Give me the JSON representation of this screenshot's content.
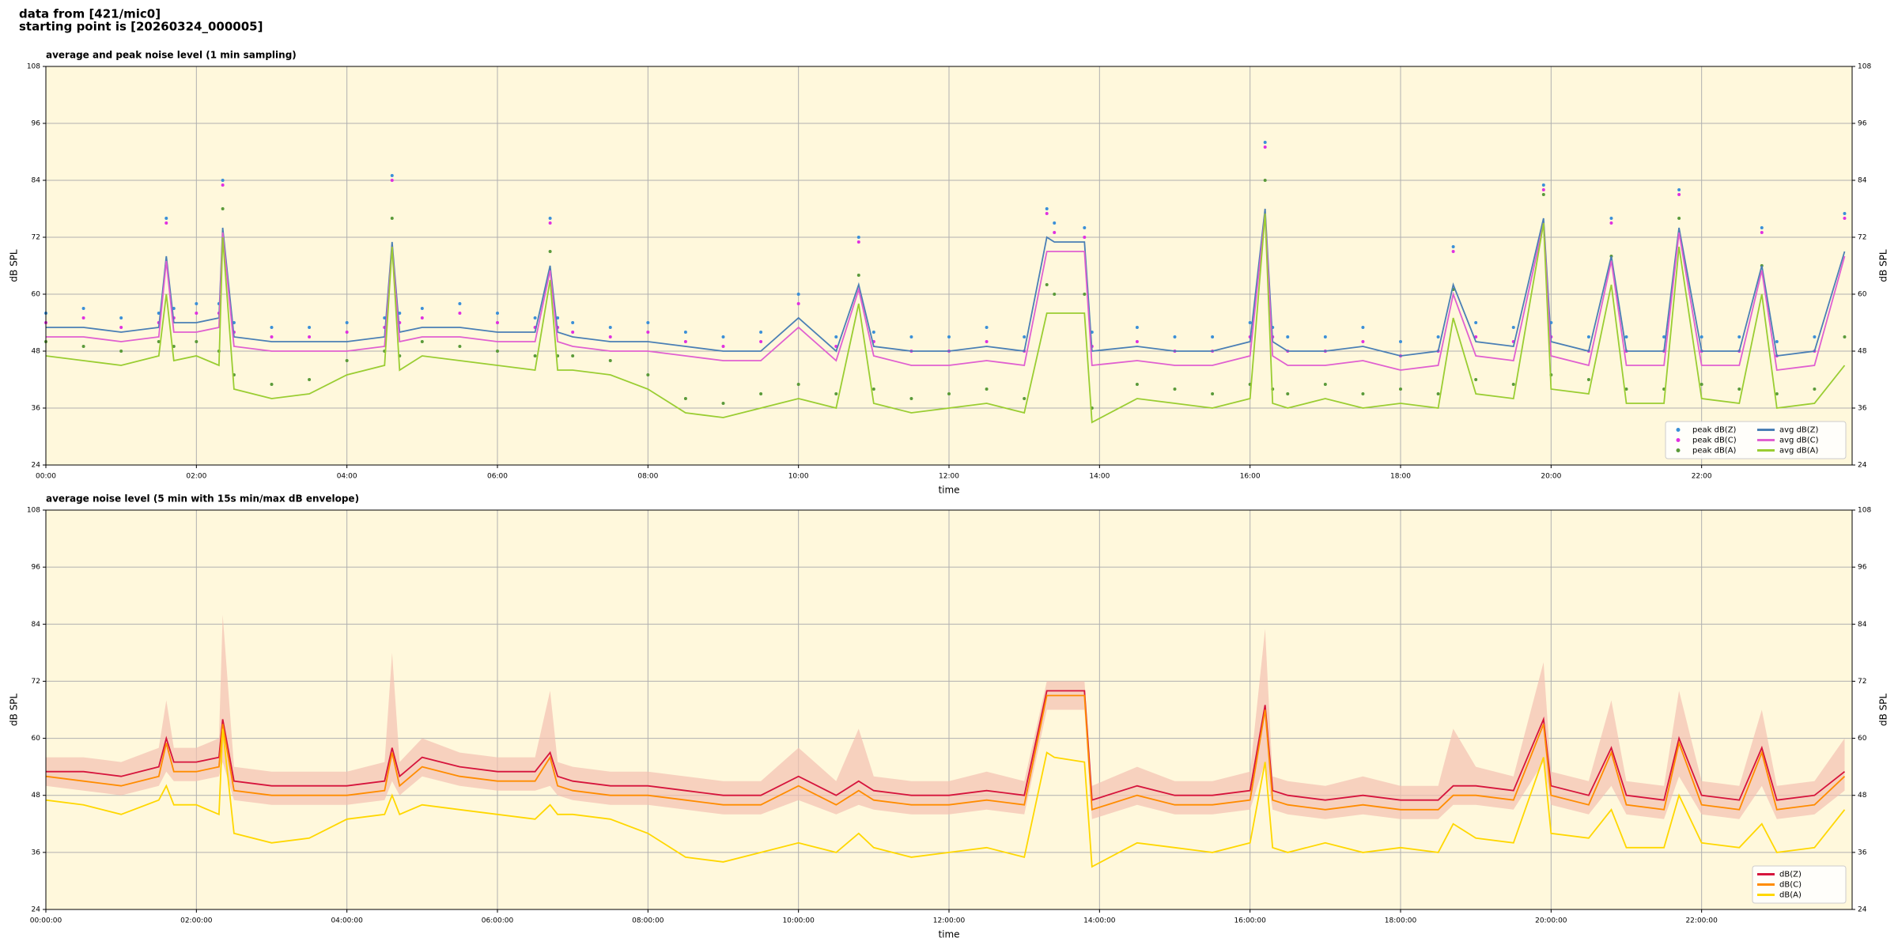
{
  "header": [
    "data from [421/mic0]",
    "starting point is [20260324_000005]"
  ],
  "chart_data": [
    {
      "type": "line",
      "title": "average and peak noise level (1 min sampling)",
      "ylabel": "dB SPL",
      "xlabel": "time",
      "xlim": [
        0,
        24
      ],
      "ylim": [
        24,
        108
      ],
      "yticks": [
        24,
        36,
        48,
        60,
        72,
        84,
        96,
        108
      ],
      "xticks": [
        {
          "value": 0,
          "label": "00:00"
        },
        {
          "value": 2,
          "label": "02:00"
        },
        {
          "value": 4,
          "label": "04:00"
        },
        {
          "value": 6,
          "label": "06:00"
        },
        {
          "value": 8,
          "label": "08:00"
        },
        {
          "value": 10,
          "label": "10:00"
        },
        {
          "value": 12,
          "label": "12:00"
        },
        {
          "value": 14,
          "label": "14:00"
        },
        {
          "value": 16,
          "label": "16:00"
        },
        {
          "value": 18,
          "label": "18:00"
        },
        {
          "value": 20,
          "label": "20:00"
        },
        {
          "value": 22,
          "label": "22:00"
        }
      ],
      "grid": true,
      "background": "#fff8dc",
      "legend": "lower right",
      "legend_columns": 2,
      "x": [
        0,
        0.5,
        1,
        1.5,
        1.6,
        1.7,
        2,
        2.3,
        2.35,
        2.5,
        3,
        3.5,
        4,
        4.5,
        4.6,
        4.7,
        5,
        5.5,
        6,
        6.5,
        6.7,
        6.8,
        7,
        7.5,
        8,
        8.5,
        9,
        9.5,
        10,
        10.5,
        10.8,
        11,
        11.5,
        12,
        12.5,
        13,
        13.3,
        13.4,
        13.8,
        13.9,
        14.5,
        15,
        15.5,
        16,
        16.2,
        16.3,
        16.5,
        17,
        17.5,
        18,
        18.5,
        18.7,
        19,
        19.5,
        19.9,
        20,
        20.5,
        20.8,
        21,
        21.5,
        21.7,
        22,
        22.5,
        22.8,
        23,
        23.5,
        23.9
      ],
      "series": [
        {
          "name": "peak dB(Z)",
          "color": "#3a8fd8",
          "style": "points",
          "values": [
            56,
            57,
            55,
            56,
            76,
            57,
            58,
            58,
            84,
            54,
            53,
            53,
            54,
            55,
            85,
            56,
            57,
            58,
            56,
            55,
            76,
            55,
            54,
            53,
            54,
            52,
            51,
            52,
            60,
            51,
            72,
            52,
            51,
            51,
            53,
            51,
            78,
            75,
            74,
            52,
            53,
            51,
            51,
            54,
            92,
            53,
            51,
            51,
            53,
            50,
            51,
            70,
            54,
            53,
            83,
            54,
            51,
            76,
            51,
            51,
            82,
            51,
            51,
            74,
            50,
            51,
            77
          ]
        },
        {
          "name": "peak dB(C)",
          "color": "#e030e0",
          "style": "points",
          "values": [
            54,
            55,
            53,
            54,
            75,
            55,
            56,
            56,
            83,
            52,
            51,
            51,
            52,
            53,
            84,
            54,
            55,
            56,
            54,
            53,
            75,
            53,
            52,
            51,
            52,
            50,
            49,
            50,
            58,
            49,
            71,
            50,
            48,
            48,
            50,
            48,
            77,
            73,
            72,
            49,
            50,
            48,
            48,
            51,
            91,
            51,
            48,
            48,
            50,
            47,
            48,
            69,
            51,
            50,
            82,
            51,
            48,
            75,
            48,
            48,
            81,
            48,
            48,
            73,
            47,
            48,
            76
          ]
        },
        {
          "name": "peak dB(A)",
          "color": "#5a9a3a",
          "style": "points",
          "values": [
            50,
            49,
            48,
            50,
            66,
            49,
            50,
            48,
            78,
            43,
            41,
            42,
            46,
            48,
            76,
            47,
            50,
            49,
            48,
            47,
            69,
            47,
            47,
            46,
            43,
            38,
            37,
            39,
            41,
            39,
            64,
            40,
            38,
            39,
            40,
            38,
            62,
            60,
            60,
            36,
            41,
            40,
            39,
            41,
            84,
            40,
            39,
            41,
            39,
            40,
            39,
            61,
            42,
            41,
            81,
            43,
            42,
            68,
            40,
            40,
            76,
            41,
            40,
            66,
            39,
            40,
            51
          ]
        },
        {
          "name": "avg dB(Z)",
          "color": "#4a7fb5",
          "style": "line",
          "values": [
            53,
            53,
            52,
            53,
            68,
            54,
            54,
            55,
            74,
            51,
            50,
            50,
            50,
            51,
            71,
            52,
            53,
            53,
            52,
            52,
            66,
            52,
            51,
            50,
            50,
            49,
            48,
            48,
            55,
            48,
            62,
            49,
            48,
            48,
            49,
            48,
            72,
            71,
            71,
            48,
            49,
            48,
            48,
            50,
            78,
            50,
            48,
            48,
            49,
            47,
            48,
            62,
            50,
            49,
            76,
            50,
            48,
            68,
            48,
            48,
            74,
            48,
            48,
            66,
            47,
            48,
            69
          ]
        },
        {
          "name": "avg dB(C)",
          "color": "#e060d0",
          "style": "line",
          "values": [
            51,
            51,
            50,
            51,
            67,
            52,
            52,
            53,
            73,
            49,
            48,
            48,
            48,
            49,
            70,
            50,
            51,
            51,
            50,
            50,
            65,
            50,
            49,
            48,
            48,
            47,
            46,
            46,
            53,
            46,
            61,
            47,
            45,
            45,
            46,
            45,
            69,
            69,
            69,
            45,
            46,
            45,
            45,
            47,
            77,
            47,
            45,
            45,
            46,
            44,
            45,
            60,
            47,
            46,
            75,
            47,
            45,
            67,
            45,
            45,
            73,
            45,
            45,
            65,
            44,
            45,
            68
          ]
        },
        {
          "name": "avg dB(A)",
          "color": "#9acd32",
          "style": "line",
          "values": [
            47,
            46,
            45,
            47,
            60,
            46,
            47,
            45,
            72,
            40,
            38,
            39,
            43,
            45,
            70,
            44,
            47,
            46,
            45,
            44,
            63,
            44,
            44,
            43,
            40,
            35,
            34,
            36,
            38,
            36,
            58,
            37,
            35,
            36,
            37,
            35,
            56,
            56,
            56,
            33,
            38,
            37,
            36,
            38,
            77,
            37,
            36,
            38,
            36,
            37,
            36,
            55,
            39,
            38,
            75,
            40,
            39,
            62,
            37,
            37,
            70,
            38,
            37,
            60,
            36,
            37,
            45
          ]
        }
      ]
    },
    {
      "type": "line",
      "title": "average noise level (5 min with 15s min/max dB envelope)",
      "ylabel": "dB SPL",
      "xlabel": "time",
      "xlim": [
        0,
        24
      ],
      "ylim": [
        24,
        108
      ],
      "yticks": [
        24,
        36,
        48,
        60,
        72,
        84,
        96,
        108
      ],
      "xticks": [
        {
          "value": 0,
          "label": "00:00:00"
        },
        {
          "value": 2,
          "label": "02:00:00"
        },
        {
          "value": 4,
          "label": "04:00:00"
        },
        {
          "value": 6,
          "label": "06:00:00"
        },
        {
          "value": 8,
          "label": "08:00:00"
        },
        {
          "value": 10,
          "label": "10:00:00"
        },
        {
          "value": 12,
          "label": "12:00:00"
        },
        {
          "value": 14,
          "label": "14:00:00"
        },
        {
          "value": 16,
          "label": "16:00:00"
        },
        {
          "value": 18,
          "label": "18:00:00"
        },
        {
          "value": 20,
          "label": "20:00:00"
        },
        {
          "value": 22,
          "label": "22:00:00"
        }
      ],
      "grid": true,
      "background": "#fff8dc",
      "legend": "lower right",
      "legend_columns": 1,
      "x": [
        0,
        0.5,
        1,
        1.5,
        1.6,
        1.7,
        2,
        2.3,
        2.35,
        2.5,
        3,
        3.5,
        4,
        4.5,
        4.6,
        4.7,
        5,
        5.5,
        6,
        6.5,
        6.7,
        6.8,
        7,
        7.5,
        8,
        8.5,
        9,
        9.5,
        10,
        10.5,
        10.8,
        11,
        11.5,
        12,
        12.5,
        13,
        13.3,
        13.4,
        13.8,
        13.9,
        14.5,
        15,
        15.5,
        16,
        16.2,
        16.3,
        16.5,
        17,
        17.5,
        18,
        18.5,
        18.7,
        19,
        19.5,
        19.9,
        20,
        20.5,
        20.8,
        21,
        21.5,
        21.7,
        22,
        22.5,
        22.8,
        23,
        23.5,
        23.9
      ],
      "envelope": {
        "color": "#f4c0b0",
        "high": [
          56,
          56,
          55,
          58,
          68,
          58,
          58,
          60,
          86,
          54,
          53,
          53,
          53,
          55,
          78,
          55,
          60,
          57,
          56,
          56,
          70,
          55,
          54,
          53,
          53,
          52,
          51,
          51,
          58,
          51,
          62,
          52,
          51,
          51,
          53,
          51,
          72,
          72,
          72,
          50,
          54,
          51,
          51,
          53,
          83,
          52,
          51,
          50,
          52,
          50,
          50,
          62,
          54,
          52,
          76,
          53,
          51,
          68,
          51,
          50,
          70,
          51,
          50,
          66,
          50,
          51,
          60
        ],
        "low": [
          50,
          49,
          48,
          50,
          53,
          51,
          51,
          52,
          55,
          47,
          46,
          46,
          46,
          47,
          51,
          48,
          52,
          50,
          49,
          49,
          50,
          48,
          47,
          46,
          46,
          45,
          44,
          44,
          47,
          44,
          46,
          45,
          44,
          44,
          45,
          44,
          66,
          66,
          66,
          43,
          46,
          44,
          44,
          45,
          55,
          45,
          44,
          43,
          44,
          43,
          43,
          46,
          46,
          45,
          55,
          46,
          44,
          50,
          44,
          43,
          52,
          44,
          43,
          50,
          43,
          44,
          49
        ]
      },
      "series": [
        {
          "name": "dB(Z)",
          "color": "#d6143c",
          "style": "line",
          "values": [
            53,
            53,
            52,
            54,
            60,
            55,
            55,
            56,
            64,
            51,
            50,
            50,
            50,
            51,
            58,
            52,
            56,
            54,
            53,
            53,
            57,
            52,
            51,
            50,
            50,
            49,
            48,
            48,
            52,
            48,
            51,
            49,
            48,
            48,
            49,
            48,
            70,
            70,
            70,
            47,
            50,
            48,
            48,
            49,
            67,
            49,
            48,
            47,
            48,
            47,
            47,
            50,
            50,
            49,
            64,
            50,
            48,
            58,
            48,
            47,
            60,
            48,
            47,
            58,
            47,
            48,
            53
          ]
        },
        {
          "name": "dB(C)",
          "color": "#ff8c00",
          "style": "line",
          "values": [
            52,
            51,
            50,
            52,
            59,
            53,
            53,
            54,
            63,
            49,
            48,
            48,
            48,
            49,
            57,
            50,
            54,
            52,
            51,
            51,
            56,
            50,
            49,
            48,
            48,
            47,
            46,
            46,
            50,
            46,
            49,
            47,
            46,
            46,
            47,
            46,
            69,
            69,
            69,
            45,
            48,
            46,
            46,
            47,
            66,
            47,
            46,
            45,
            46,
            45,
            45,
            48,
            48,
            47,
            63,
            48,
            46,
            57,
            46,
            45,
            59,
            46,
            45,
            57,
            45,
            46,
            52
          ]
        },
        {
          "name": "dB(A)",
          "color": "#ffd700",
          "style": "line",
          "values": [
            47,
            46,
            44,
            47,
            50,
            46,
            46,
            44,
            62,
            40,
            38,
            39,
            43,
            44,
            48,
            44,
            46,
            45,
            44,
            43,
            46,
            44,
            44,
            43,
            40,
            35,
            34,
            36,
            38,
            36,
            40,
            37,
            35,
            36,
            37,
            35,
            57,
            56,
            55,
            33,
            38,
            37,
            36,
            38,
            55,
            37,
            36,
            38,
            36,
            37,
            36,
            42,
            39,
            38,
            56,
            40,
            39,
            45,
            37,
            37,
            48,
            38,
            37,
            42,
            36,
            37,
            45
          ]
        }
      ]
    }
  ]
}
